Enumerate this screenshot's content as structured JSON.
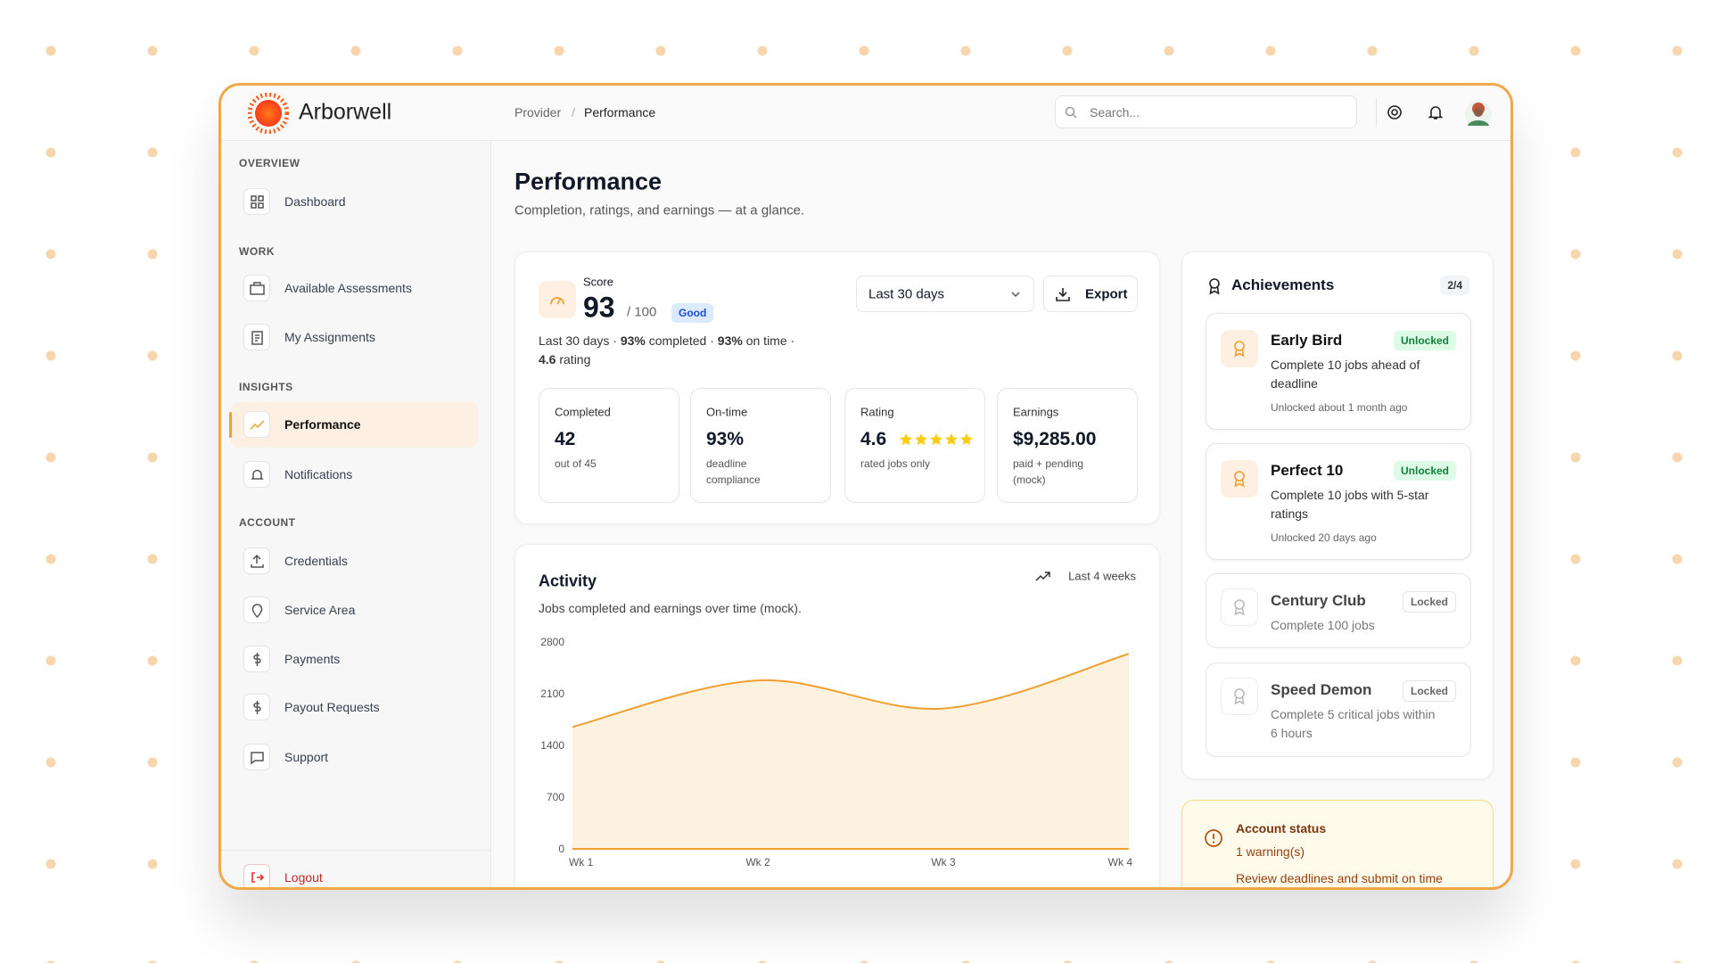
{
  "header": {
    "brand": "Arborwell",
    "breadcrumb": [
      "Provider",
      "/",
      "Performance"
    ],
    "search_placeholder": "Search..."
  },
  "sidebar": {
    "sections": [
      {
        "label": "OVERVIEW",
        "items": [
          "Dashboard"
        ]
      },
      {
        "label": "WORK",
        "items": [
          "Available Assessments",
          "My Assignments"
        ]
      },
      {
        "label": "INSIGHTS",
        "items": [
          "Performance",
          "Notifications"
        ]
      },
      {
        "label": "ACCOUNT",
        "items": [
          "Credentials",
          "Service Area",
          "Payments",
          "Payout Requests",
          "Support"
        ]
      }
    ],
    "logout": "Logout"
  },
  "page": {
    "title": "Performance",
    "subtitle": "Completion, ratings, and earnings — at a glance."
  },
  "score": {
    "label": "Score",
    "value": "93",
    "max": "/ 100",
    "badge": "Good",
    "range": "Last 30 days",
    "export": "Export",
    "summary": [
      "Last 30 days · ",
      "93%",
      " completed · ",
      "93%",
      " on time ·"
    ],
    "rating_value": "4.6",
    "rating_word": " rating"
  },
  "stats": [
    {
      "label": "Completed",
      "value": "42",
      "sub": [
        "out of 45"
      ]
    },
    {
      "label": "On-time",
      "value": "93%",
      "sub": [
        "deadline",
        "compliance"
      ]
    },
    {
      "label": "Rating",
      "value": "4.6",
      "sub": [
        "rated jobs only"
      ]
    },
    {
      "label": "Earnings",
      "value": "$9,285.00",
      "sub": [
        "paid + pending",
        "(mock)"
      ]
    }
  ],
  "activity": {
    "title": "Activity",
    "subtitle": "Jobs completed and earnings over time (mock).",
    "range": "Last 4 weeks"
  },
  "chart_data": {
    "type": "line",
    "categories": [
      "Wk 1",
      "Wk 2",
      "Wk 3",
      "Wk 4"
    ],
    "series": [
      {
        "color": "#f0a030",
        "values": [
          1650,
          2280,
          1900,
          2640
        ],
        "fill": "#fdf1e0"
      },
      {
        "color": "#f0a030",
        "values": [
          0,
          0,
          0,
          0
        ]
      }
    ],
    "ylim": [
      0,
      2800
    ],
    "yticks": [
      0,
      700,
      1400,
      2100,
      2800
    ],
    "grid": false
  },
  "achievements": {
    "title": "Achievements",
    "count": "2/4",
    "items": [
      {
        "title": "Early Bird",
        "status": "Unlocked",
        "desc": [
          "Complete 10 jobs ahead of",
          "deadline"
        ],
        "meta": "Unlocked about 1 month ago"
      },
      {
        "title": "Perfect 10",
        "status": "Unlocked",
        "desc": [
          "Complete 10 jobs with 5-star",
          "ratings"
        ],
        "meta": "Unlocked 20 days ago"
      },
      {
        "title": "Century Club",
        "status": "Locked",
        "desc": [
          "Complete 100 jobs"
        ]
      },
      {
        "title": "Speed Demon",
        "status": "Locked",
        "desc": [
          "Complete 5 critical jobs within",
          "6 hours"
        ]
      }
    ]
  },
  "account_status": {
    "title": "Account status",
    "warnings": "1 warning(s)",
    "message": "Review deadlines and submit on time"
  }
}
